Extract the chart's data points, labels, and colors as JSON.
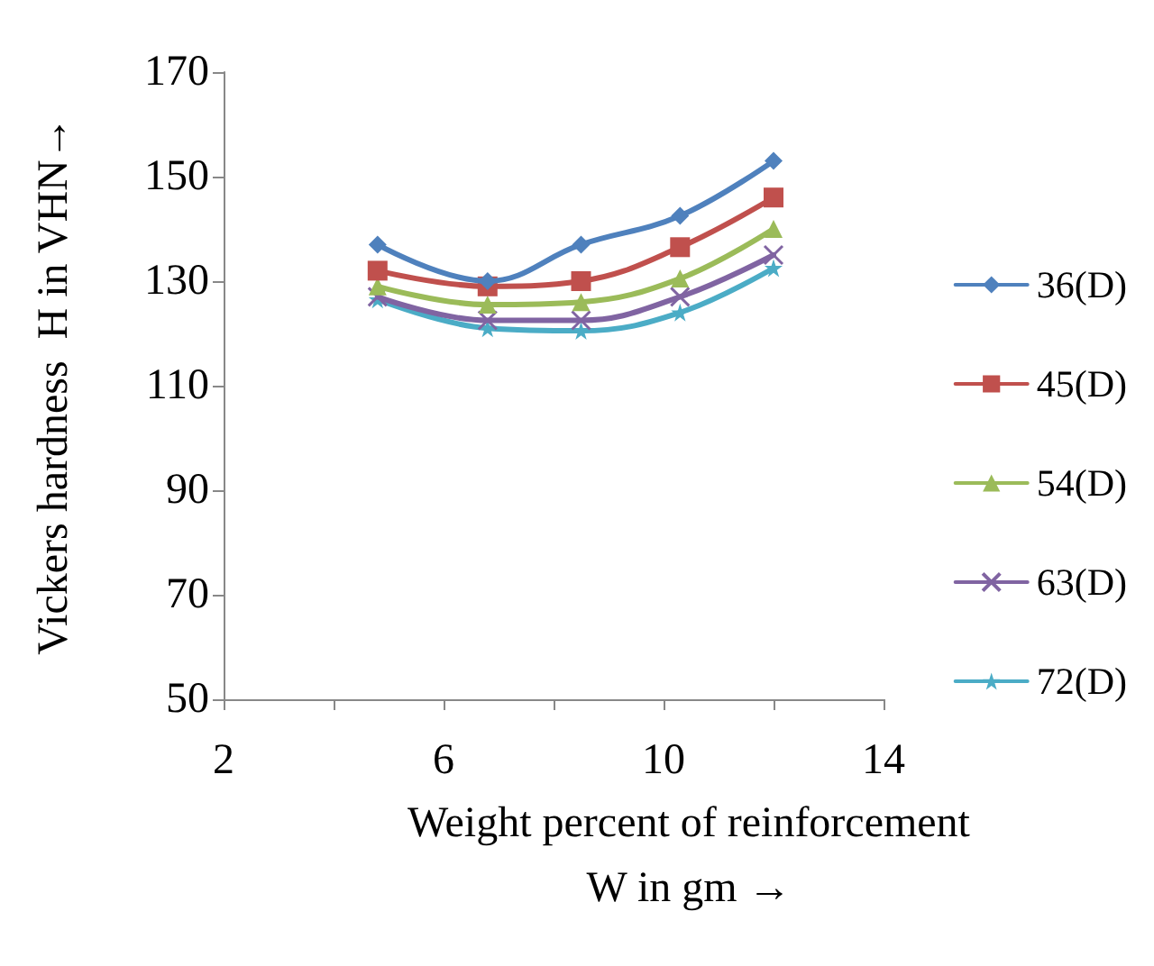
{
  "chart_data": {
    "type": "line",
    "ylabel": "Vickers hardness  H in VHN→",
    "xlabel": "Weight percent of reinforcement\nW in gm →",
    "x": [
      4.8,
      6.8,
      8.5,
      10.3,
      12
    ],
    "xlim": [
      2,
      14
    ],
    "xticks": [
      2,
      {
        "value": 4,
        "label": null
      },
      6,
      {
        "value": 8,
        "label": null
      },
      10,
      {
        "value": 12,
        "label": null
      },
      14
    ],
    "ylim": [
      50,
      170
    ],
    "yticks": [
      50,
      70,
      90,
      110,
      130,
      150,
      170
    ],
    "grid": false,
    "legend": "right",
    "line_style": "solid",
    "series": [
      {
        "name": "36(D)",
        "color": "#4f81bd",
        "marker": "diamond",
        "values": [
          137,
          130,
          137,
          142.5,
          153
        ]
      },
      {
        "name": "45(D)",
        "color": "#c0504d",
        "marker": "square",
        "values": [
          132,
          129,
          130,
          136.5,
          146
        ]
      },
      {
        "name": "54(D)",
        "color": "#9bbb59",
        "marker": "triangle",
        "values": [
          129,
          125.5,
          126,
          130.5,
          140
        ]
      },
      {
        "name": "63(D)",
        "color": "#8064a2",
        "marker": "cross",
        "values": [
          127,
          122.5,
          122.5,
          127,
          135
        ]
      },
      {
        "name": "72(D)",
        "color": "#4bacc6",
        "marker": "star",
        "values": [
          126.5,
          121,
          120.5,
          124,
          132.5
        ]
      }
    ]
  }
}
